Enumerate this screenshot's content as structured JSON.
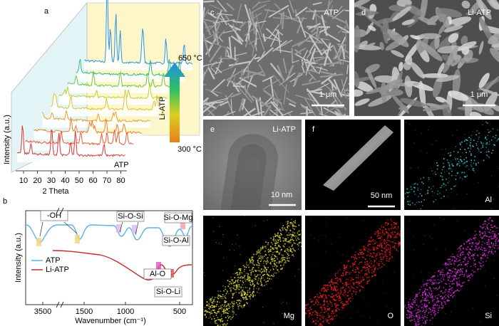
{
  "a": {
    "label": "a",
    "y_label": "Intensity (a.u.)",
    "x_label": "2 Theta",
    "x_ticks": [
      10,
      20,
      30,
      40,
      50,
      60,
      70,
      80
    ],
    "curve_label": "ATP",
    "colorbar_label": "Li-ATP",
    "temp_high": "650 °C",
    "temp_low": "300 °C"
  },
  "b": {
    "label": "b",
    "y_label": "Intensity (a.u.)",
    "x_label": "Wavenumber (cm⁻¹)",
    "x_ticks": [
      3500,
      1500,
      1000,
      500
    ],
    "legend": [
      "ATP",
      "Li-ATP"
    ],
    "annotations": [
      "-OH",
      "Si-O-Si",
      "Si-O-Mg",
      "Si-O-Al",
      "Al-O",
      "Si-O-Li"
    ]
  },
  "c": {
    "label": "c",
    "sample": "ATP",
    "scale": "1 μm"
  },
  "d": {
    "label": "d",
    "sample": "Li-ATP",
    "scale": "1 μm"
  },
  "e": {
    "label": "e",
    "sample": "Li-ATP",
    "scale": "10 nm"
  },
  "f": {
    "label": "f",
    "scale": "50 nm",
    "maps": [
      "Al",
      "Mg",
      "O",
      "Si"
    ]
  }
}
